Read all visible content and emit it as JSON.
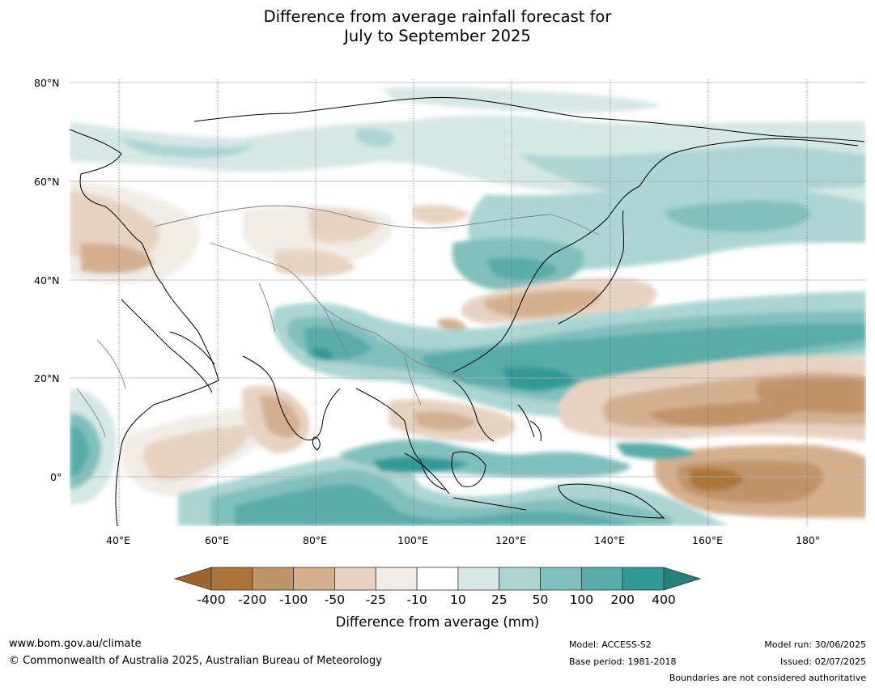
{
  "title": {
    "line1": "Difference from average rainfall forecast for",
    "line2": "July to September 2025"
  },
  "map": {
    "lat_labels": [
      "80°N",
      "60°N",
      "40°N",
      "20°N",
      "0°"
    ],
    "lon_labels": [
      "40°E",
      "60°E",
      "80°E",
      "100°E",
      "120°E",
      "140°E",
      "160°E",
      "180°"
    ],
    "colors": {
      "land_outline": "#000000",
      "border": "#808080",
      "gridline": "#b0b0b0"
    }
  },
  "colorbar": {
    "title": "Difference from average (mm)",
    "labels": [
      "-400",
      "-200",
      "-100",
      "-50",
      "-25",
      "-10",
      "10",
      "25",
      "50",
      "100",
      "200",
      "400"
    ],
    "colors": [
      "#9d6630",
      "#ad7439",
      "#c1946a",
      "#d4b08f",
      "#e7d3c2",
      "#f1ece6",
      "#ffffff",
      "#d5e8e6",
      "#acd5d3",
      "#82c0bd",
      "#5aaca9",
      "#329996",
      "#267f7c"
    ]
  },
  "footer": {
    "website": "www.bom.gov.au/climate",
    "copyright": "© Commonwealth of Australia 2025, Australian Bureau of Meteorology",
    "model": "Model: ACCESS-S2",
    "base_period": "Base period: 1981-2018",
    "model_run": "Model run: 30/06/2025",
    "issued": "Issued: 02/07/2025",
    "disclaimer": "Boundaries are not considered authoritative"
  }
}
